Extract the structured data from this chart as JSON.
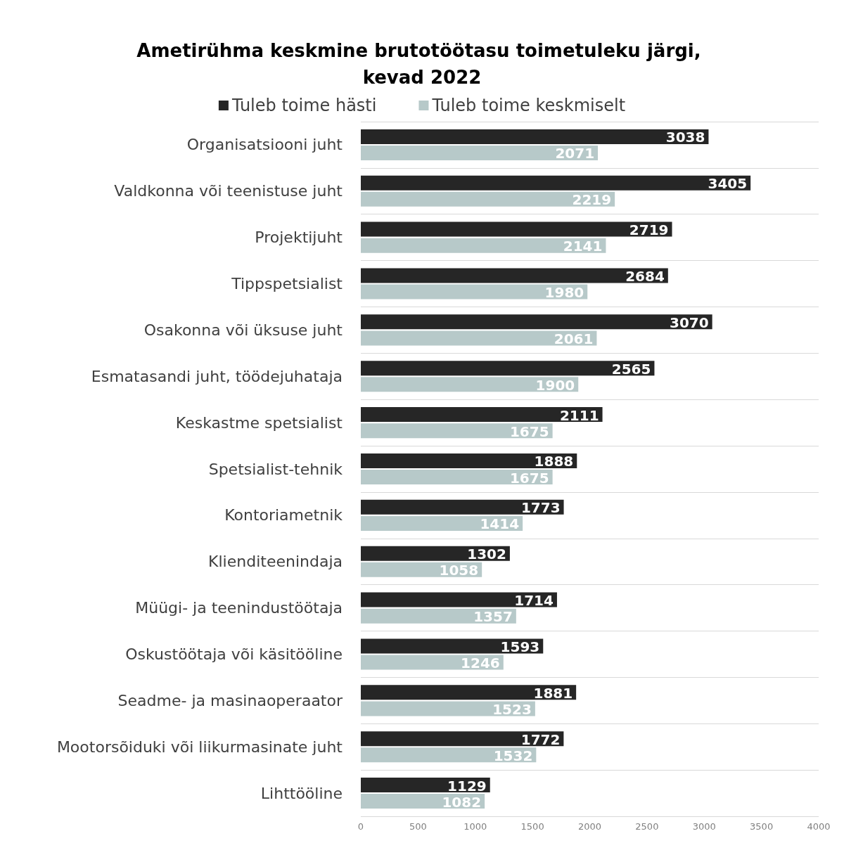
{
  "chart_data": {
    "type": "bar",
    "orientation": "horizontal",
    "title": "Ametirühma keskmine brutotöötasu toimetuleku järgi, kevad 2022",
    "categories": [
      "Organisatsiooni juht",
      "Valdkonna või teenistuse juht",
      "Projektijuht",
      "Tippspetsialist",
      "Osakonna või üksuse juht",
      "Esmatasandi juht, töödejuhataja",
      "Keskastme spetsialist",
      "Spetsialist-tehnik",
      "Kontoriametnik",
      "Klienditeenindaja",
      "Müügi- ja teenindustöötaja",
      "Oskustöötaja või käsitööline",
      "Seadme- ja masinaoperaator",
      "Mootorsõiduki või liikurmasinate juht",
      "Lihttööline"
    ],
    "series": [
      {
        "name": "Tuleb toime hästi",
        "color": "#262626",
        "values": [
          3038,
          3405,
          2719,
          2684,
          3070,
          2565,
          2111,
          1888,
          1773,
          1302,
          1714,
          1593,
          1881,
          1772,
          1129
        ]
      },
      {
        "name": "Tuleb toime keskmiselt",
        "color": "#b7c9c9",
        "values": [
          2071,
          2219,
          2141,
          1980,
          2061,
          1900,
          1675,
          1675,
          1414,
          1058,
          1357,
          1246,
          1523,
          1532,
          1082
        ]
      }
    ],
    "xlim": [
      0,
      4000
    ],
    "xticks": [
      0,
      500,
      1000,
      1500,
      2000,
      2500,
      3000,
      3500,
      4000
    ],
    "grid": "y",
    "legend": "top",
    "data_labels": true
  }
}
